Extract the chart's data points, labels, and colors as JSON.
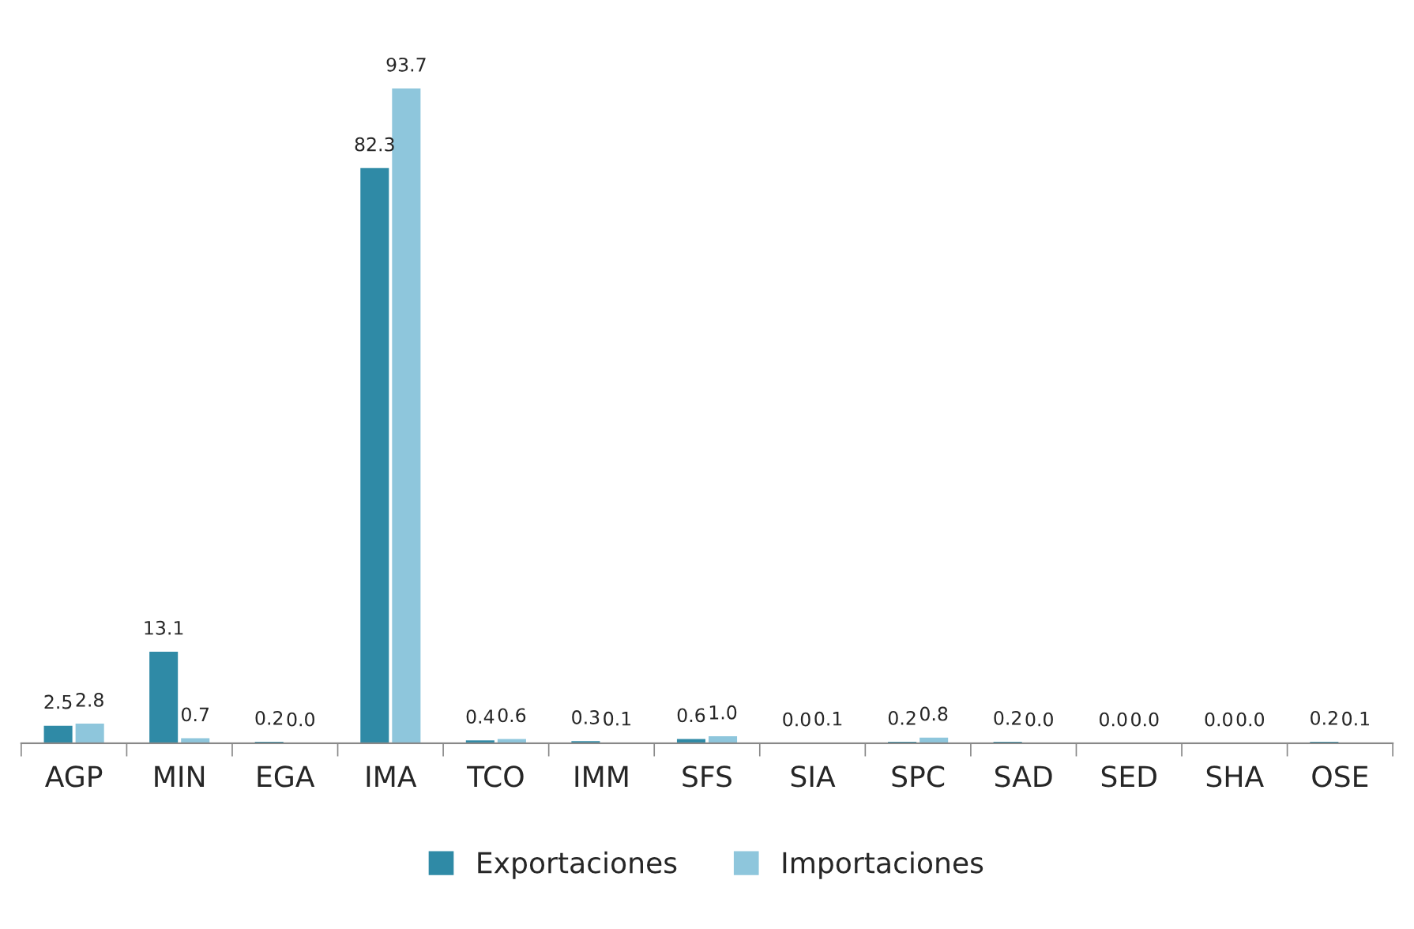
{
  "chart_data": {
    "type": "bar",
    "categories": [
      "AGP",
      "MIN",
      "EGA",
      "IMA",
      "TCO",
      "IMM",
      "SFS",
      "SIA",
      "SPC",
      "SAD",
      "SED",
      "SHA",
      "OSE"
    ],
    "series": [
      {
        "name": "Exportaciones",
        "color": "#2f8aa6",
        "values": [
          2.5,
          13.1,
          0.2,
          82.3,
          0.4,
          0.3,
          0.6,
          0.0,
          0.2,
          0.2,
          0.0,
          0.0,
          0.2
        ],
        "value_labels": [
          "2.5",
          "13.1",
          "0.2",
          "82.3",
          "0.4",
          "0.3",
          "0.6",
          "0.0",
          "0.2",
          "0.2",
          "0.0",
          "0.0",
          "0.2"
        ]
      },
      {
        "name": "Importaciones",
        "color": "#8ec6dc",
        "values": [
          2.8,
          0.7,
          0.0,
          93.7,
          0.6,
          0.1,
          1.0,
          0.1,
          0.8,
          0.0,
          0.0,
          0.0,
          0.1
        ],
        "value_labels": [
          "2.8",
          "0.7",
          "0.0",
          "93.7",
          "0.6",
          "0.1",
          "1.0",
          "0.1",
          "0.8",
          "0.0",
          "0.0",
          "0.0",
          "0.1"
        ]
      }
    ],
    "legend": "bottom",
    "grid": false
  }
}
